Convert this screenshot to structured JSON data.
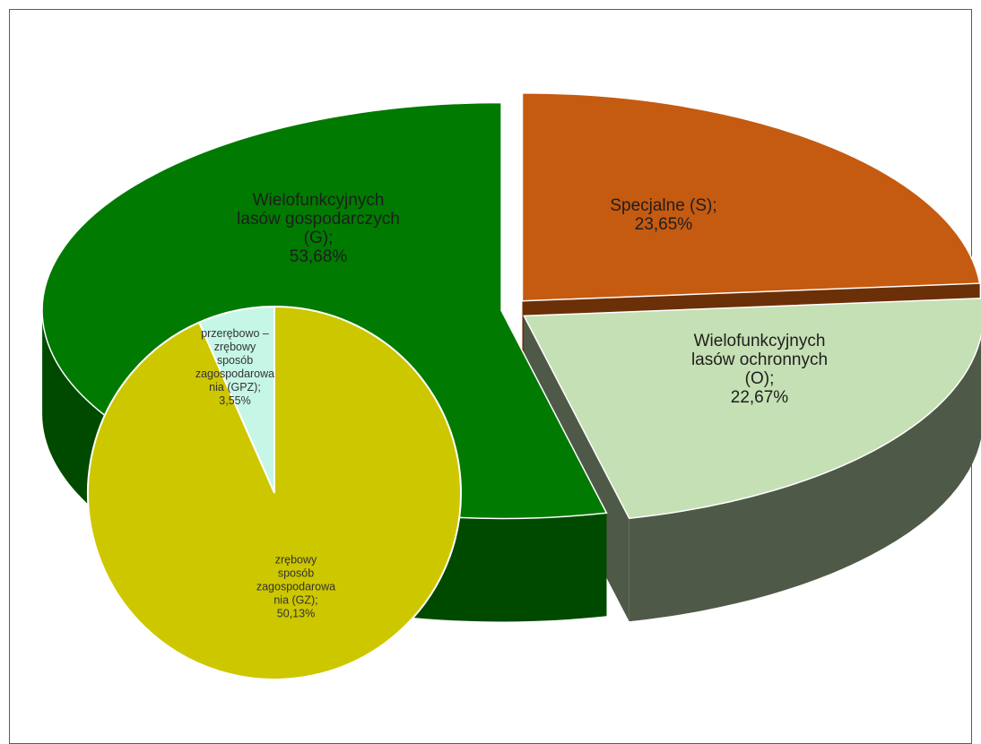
{
  "chart_data": [
    {
      "type": "pie",
      "three_d": true,
      "categories": [
        "Specjalne (S);",
        "Wielofunkcyjnych lasów ochronnych (O);",
        "Wielofunkcyjnych lasów gospodarczych (G);"
      ],
      "values": [
        23.65,
        22.67,
        53.68
      ],
      "value_labels": [
        "23,65%",
        "22,67%",
        "53,68%"
      ],
      "colors": [
        "#c55a11",
        "#c5e0b4",
        "#007a00"
      ],
      "side_colors": [
        "#6b3008",
        "#4e5a47",
        "#004a00"
      ]
    },
    {
      "type": "pie",
      "three_d": false,
      "categories": [
        "przerębowo – zrębowy sposób zagospodarowania (GPZ);",
        "zrębowy sposób zagospodarowania (GZ);"
      ],
      "values": [
        3.55,
        50.13
      ],
      "value_labels": [
        "3,55%",
        "50,13%"
      ],
      "colors": [
        "#c6f6e6",
        "#cdc700"
      ]
    }
  ]
}
